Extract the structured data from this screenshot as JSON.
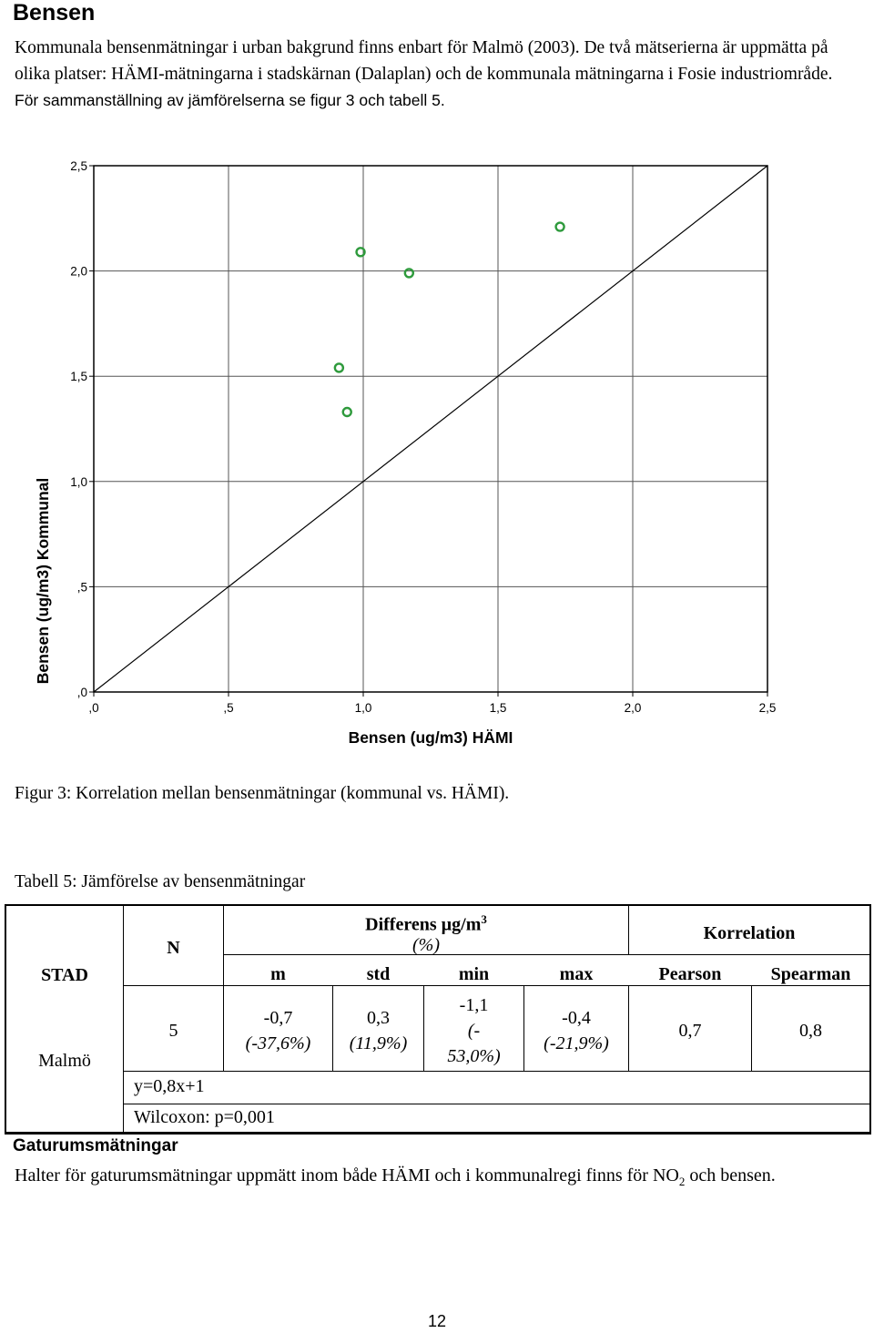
{
  "section_heading": "Bensen",
  "intro": {
    "paragraph1": "Kommunala bensenmätningar i urban bakgrund finns enbart för Malmö (2003). De två mätserierna är uppmätta på olika platser: HÄMI-mätningarna i stadskärnan (Dalaplan) och de kommunala mätningarna i Fosie industriområde.",
    "paragraph2": "För sammanställning av jämförelserna se figur 3 och tabell 5."
  },
  "chart_data": {
    "type": "scatter",
    "xlabel": "Bensen (ug/m3) HÄMI",
    "ylabel": "Bensen (ug/m3) Kommunal",
    "xlim": [
      0,
      2.5
    ],
    "ylim": [
      0,
      2.5
    ],
    "x_ticks": [
      ",0",
      ",5",
      "1,0",
      "1,5",
      "2,0",
      "2,5"
    ],
    "y_ticks": [
      ",0",
      ",5",
      "1,0",
      "1,5",
      "2,0",
      "2,5"
    ],
    "grid": true,
    "reference_line": {
      "type": "identity",
      "from": [
        0,
        0
      ],
      "to": [
        2.5,
        2.5
      ]
    },
    "marker_color": "#2e9a3c",
    "points": [
      {
        "x": 0.91,
        "y": 1.54
      },
      {
        "x": 0.94,
        "y": 1.33
      },
      {
        "x": 0.99,
        "y": 2.09
      },
      {
        "x": 1.17,
        "y": 1.99
      },
      {
        "x": 1.73,
        "y": 2.21
      }
    ]
  },
  "figure_caption": "Figur 3: Korrelation mellan bensenmätningar (kommunal vs. HÄMI).",
  "table_caption": "Tabell 5: Jämförelse av bensenmätningar",
  "table": {
    "header_n": "N",
    "header_diff_line1": "Differens µg/m",
    "header_diff_sup": "3",
    "header_diff_line2": "(%)",
    "header_corr": "Korrelation",
    "header_stad": "STAD",
    "sub_m": "m",
    "sub_std": "std",
    "sub_min": "min",
    "sub_max": "max",
    "sub_pearson": "Pearson",
    "sub_spearman": "Spearman",
    "row_city": "Malmö",
    "row_n": "5",
    "m_value": "-0,7",
    "m_pct": "(-37,6%)",
    "std_value": "0,3",
    "std_pct": "(11,9%)",
    "min_value": "-1,1",
    "min_pct_1": "(-",
    "min_pct_2": "53,0%)",
    "max_value": "-0,4",
    "max_pct": "(-21,9%)",
    "pearson": "0,7",
    "spearman": "0,8",
    "regression": "y=0,8x+1",
    "wilcoxon": "Wilcoxon: p=0,001"
  },
  "sub_heading": "Gaturumsmätningar",
  "outro": {
    "text_before": "Halter för gaturumsmätningar uppmätt inom både HÄMI och i kommunalregi finns för NO",
    "subscript": "2",
    "text_after": "och bensen."
  },
  "page_number": "12"
}
